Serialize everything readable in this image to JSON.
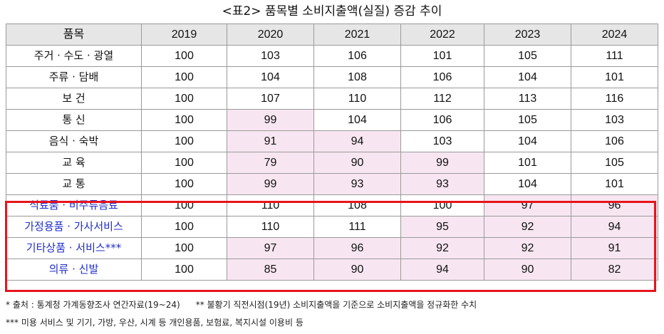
{
  "title": "<표2> 품목별 소비지출액(실질) 증감 추이",
  "table": {
    "headers": [
      "품목",
      "2019",
      "2020",
      "2021",
      "2022",
      "2023",
      "2024"
    ],
    "rows": [
      {
        "item": "주거 · 수도 · 광열",
        "values": [
          "100",
          "103",
          "106",
          "101",
          "105",
          "111"
        ],
        "decline": [
          false,
          false,
          false,
          false,
          false,
          false
        ],
        "highlight": false
      },
      {
        "item": "주류 · 담배",
        "values": [
          "100",
          "104",
          "108",
          "106",
          "104",
          "101"
        ],
        "decline": [
          false,
          false,
          false,
          false,
          false,
          false
        ],
        "highlight": false
      },
      {
        "item": "보 건",
        "values": [
          "100",
          "107",
          "110",
          "112",
          "113",
          "116"
        ],
        "decline": [
          false,
          false,
          false,
          false,
          false,
          false
        ],
        "highlight": false
      },
      {
        "item": "통 신",
        "values": [
          "100",
          "99",
          "104",
          "106",
          "105",
          "103"
        ],
        "decline": [
          false,
          true,
          false,
          false,
          false,
          false
        ],
        "highlight": false
      },
      {
        "item": "음식 · 숙박",
        "values": [
          "100",
          "91",
          "94",
          "103",
          "104",
          "106"
        ],
        "decline": [
          false,
          true,
          true,
          false,
          false,
          false
        ],
        "highlight": false
      },
      {
        "item": "교 육",
        "values": [
          "100",
          "79",
          "90",
          "99",
          "101",
          "105"
        ],
        "decline": [
          false,
          true,
          true,
          true,
          false,
          false
        ],
        "highlight": false
      },
      {
        "item": "교 통",
        "values": [
          "100",
          "99",
          "93",
          "93",
          "104",
          "101"
        ],
        "decline": [
          false,
          true,
          true,
          true,
          false,
          false
        ],
        "highlight": false
      },
      {
        "item": "식료품 · 비주류음료",
        "values": [
          "100",
          "110",
          "108",
          "100",
          "97",
          "96"
        ],
        "decline": [
          false,
          false,
          false,
          false,
          true,
          true
        ],
        "highlight": true
      },
      {
        "item": "가정용품 · 가사서비스",
        "values": [
          "100",
          "110",
          "111",
          "95",
          "92",
          "94"
        ],
        "decline": [
          false,
          false,
          false,
          true,
          true,
          true
        ],
        "highlight": true
      },
      {
        "item": "기타상품 · 서비스***",
        "values": [
          "100",
          "97",
          "96",
          "92",
          "92",
          "91"
        ],
        "decline": [
          false,
          true,
          true,
          true,
          true,
          true
        ],
        "highlight": true
      },
      {
        "item": "의류 · 신발",
        "values": [
          "100",
          "85",
          "90",
          "94",
          "90",
          "82"
        ],
        "decline": [
          false,
          true,
          true,
          true,
          true,
          true
        ],
        "highlight": true
      }
    ]
  },
  "notes": {
    "source": "* 출처 : 통계청 가계동향조사 연간자료(19~24)",
    "base": "** 불황기 직전시점(19년) 소비지출액을 기준으로 소비지출액을 정규화한 수치",
    "other": "*** 미용 서비스 및 기기, 가방, 우산, 시계 등 개인용품, 보험료, 복지시설 이용비 등"
  },
  "colors": {
    "decline_cell_bg": "#f7e6f1",
    "highlight_text": "#1f2ecc",
    "highlight_border": "#e8141c",
    "header_bg": "#e6e6e6"
  }
}
